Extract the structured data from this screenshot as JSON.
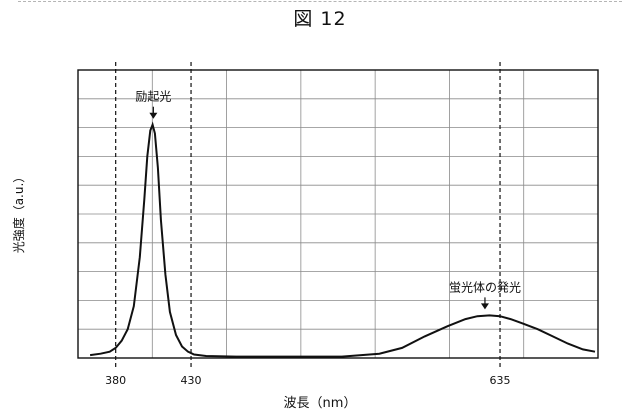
{
  "figure": {
    "title": "図 12"
  },
  "chart_data": {
    "type": "line",
    "title": "図 12",
    "xlabel": "波長（nm）",
    "ylabel": "光強度（a.u.）",
    "xlim": [
      355,
      700
    ],
    "ylim": [
      0,
      10
    ],
    "grid": true,
    "x_ticks": [
      {
        "value": 380,
        "label": "380"
      },
      {
        "value": 430,
        "label": "430"
      },
      {
        "value": 635,
        "label": "635"
      }
    ],
    "reference_lines": [
      380,
      430,
      635
    ],
    "series": [
      {
        "x": [
          363,
          370,
          376,
          380,
          384,
          388,
          392,
          396,
          399,
          401,
          403,
          404.5,
          406,
          408,
          410,
          413,
          416,
          420,
          424,
          428,
          432,
          440,
          460,
          500,
          530,
          555,
          570,
          585,
          600,
          612,
          620,
          628,
          635,
          642,
          650,
          660,
          670,
          680,
          690,
          698
        ],
        "y": [
          0.1,
          0.15,
          0.22,
          0.35,
          0.6,
          1.0,
          1.8,
          3.5,
          5.5,
          7.0,
          7.9,
          8.1,
          7.8,
          6.6,
          4.8,
          2.9,
          1.6,
          0.8,
          0.4,
          0.22,
          0.12,
          0.07,
          0.05,
          0.05,
          0.05,
          0.15,
          0.35,
          0.75,
          1.1,
          1.35,
          1.45,
          1.48,
          1.45,
          1.35,
          1.2,
          1.0,
          0.75,
          0.5,
          0.3,
          0.22
        ]
      }
    ],
    "annotations": [
      {
        "text": "励起光",
        "x": 405,
        "y": 8.1
      },
      {
        "text": "蛍光体の発光",
        "x": 625,
        "y": 1.48
      }
    ]
  }
}
